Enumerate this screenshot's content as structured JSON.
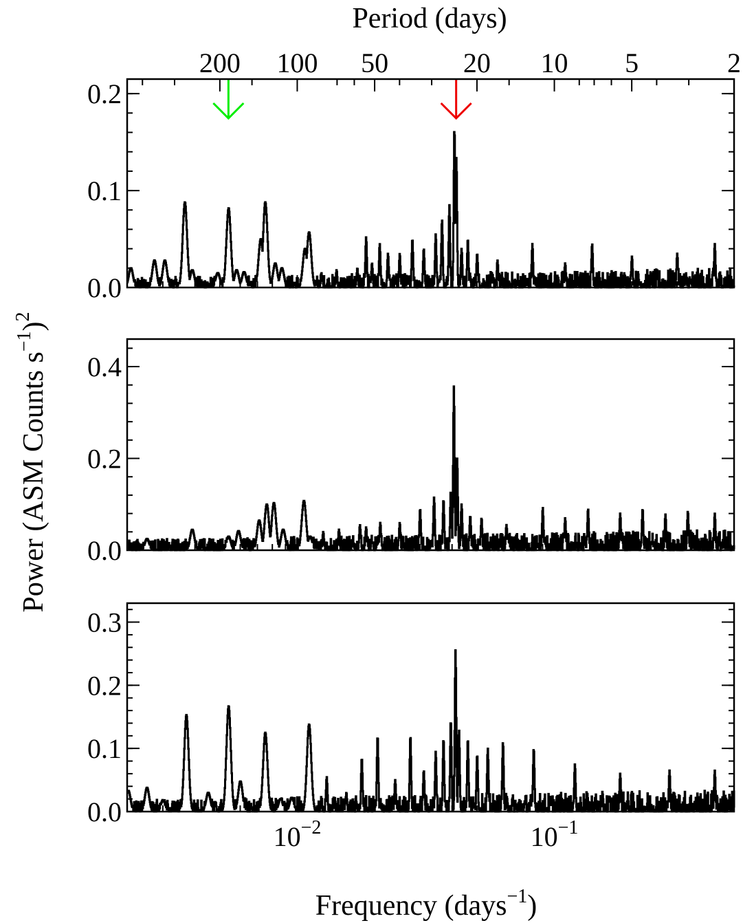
{
  "figure": {
    "top_axis_title": "Period (days)",
    "x_axis_title_main": "Frequency (days",
    "x_axis_title_sup": "−1",
    "x_axis_title_close": ")",
    "y_axis_title_main": "Power (ASM Counts s",
    "y_axis_title_sup1": "−1",
    "y_axis_title_close": ")",
    "y_axis_title_sup2": "2"
  },
  "chart_data": {
    "type": "line",
    "x_scale": "log",
    "xlim": [
      0.00218,
      0.5
    ],
    "xlabel": "Frequency (days−1)",
    "x_tick_labels": [
      {
        "value": 0.01,
        "base": "10",
        "exp": "−2"
      },
      {
        "value": 0.1,
        "base": "10",
        "exp": "−1"
      }
    ],
    "top_axis": {
      "label": "Period (days)",
      "ticks": [
        {
          "period": 200,
          "label": "200"
        },
        {
          "period": 100,
          "label": "100"
        },
        {
          "period": 50,
          "label": "50"
        },
        {
          "period": 20,
          "label": "20"
        },
        {
          "period": 10,
          "label": "10"
        },
        {
          "period": 5,
          "label": "5"
        },
        {
          "period": 2,
          "label": "2"
        }
      ]
    },
    "ylabel": "Power (ASM Counts s−1)2",
    "arrows": [
      {
        "frequency": 0.0054,
        "color": "#00ee00"
      },
      {
        "frequency": 0.0415,
        "color": "#ee0000"
      }
    ],
    "panels": [
      {
        "ylim": [
          0,
          0.215
        ],
        "y_ticks": [
          {
            "value": 0.0,
            "label": "0.0"
          },
          {
            "value": 0.1,
            "label": "0.1"
          },
          {
            "value": 0.2,
            "label": "0.2"
          }
        ],
        "peaks": [
          [
            0.00225,
            0.02
          ],
          [
            0.00278,
            0.028
          ],
          [
            0.00305,
            0.028
          ],
          [
            0.00365,
            0.088
          ],
          [
            0.0039,
            0.018
          ],
          [
            0.0049,
            0.015
          ],
          [
            0.0054,
            0.082
          ],
          [
            0.0058,
            0.018
          ],
          [
            0.0062,
            0.016
          ],
          [
            0.0072,
            0.05
          ],
          [
            0.0075,
            0.088
          ],
          [
            0.0082,
            0.025
          ],
          [
            0.0087,
            0.02
          ],
          [
            0.0107,
            0.04
          ],
          [
            0.0111,
            0.057
          ],
          [
            0.0124,
            0.015
          ],
          [
            0.0142,
            0.018
          ],
          [
            0.0171,
            0.02
          ],
          [
            0.0185,
            0.052
          ],
          [
            0.0195,
            0.025
          ],
          [
            0.0209,
            0.045
          ],
          [
            0.0225,
            0.035
          ],
          [
            0.025,
            0.035
          ],
          [
            0.028,
            0.05
          ],
          [
            0.031,
            0.04
          ],
          [
            0.0345,
            0.055
          ],
          [
            0.0365,
            0.07
          ],
          [
            0.039,
            0.085
          ],
          [
            0.0408,
            0.165
          ],
          [
            0.0415,
            0.134
          ],
          [
            0.0435,
            0.04
          ],
          [
            0.046,
            0.05
          ],
          [
            0.05,
            0.035
          ],
          [
            0.06,
            0.028
          ],
          [
            0.082,
            0.045
          ],
          [
            0.11,
            0.025
          ],
          [
            0.14,
            0.045
          ],
          [
            0.2,
            0.032
          ],
          [
            0.3,
            0.035
          ],
          [
            0.42,
            0.045
          ]
        ],
        "noise_level": 0.02
      },
      {
        "ylim": [
          0,
          0.46
        ],
        "y_ticks": [
          {
            "value": 0.0,
            "label": "0.0"
          },
          {
            "value": 0.2,
            "label": "0.2"
          },
          {
            "value": 0.4,
            "label": "0.4"
          }
        ],
        "peaks": [
          [
            0.0026,
            0.025
          ],
          [
            0.0039,
            0.045
          ],
          [
            0.0054,
            0.03
          ],
          [
            0.0059,
            0.042
          ],
          [
            0.0071,
            0.065
          ],
          [
            0.0076,
            0.1
          ],
          [
            0.0081,
            0.103
          ],
          [
            0.0088,
            0.045
          ],
          [
            0.0106,
            0.108
          ],
          [
            0.0112,
            0.03
          ],
          [
            0.0126,
            0.04
          ],
          [
            0.0145,
            0.045
          ],
          [
            0.0175,
            0.055
          ],
          [
            0.0185,
            0.05
          ],
          [
            0.021,
            0.06
          ],
          [
            0.025,
            0.06
          ],
          [
            0.03,
            0.09
          ],
          [
            0.034,
            0.115
          ],
          [
            0.037,
            0.11
          ],
          [
            0.0395,
            0.13
          ],
          [
            0.0406,
            0.357
          ],
          [
            0.0418,
            0.2
          ],
          [
            0.0435,
            0.1
          ],
          [
            0.047,
            0.075
          ],
          [
            0.052,
            0.07
          ],
          [
            0.065,
            0.055
          ],
          [
            0.09,
            0.093
          ],
          [
            0.11,
            0.07
          ],
          [
            0.135,
            0.09
          ],
          [
            0.18,
            0.08
          ],
          [
            0.22,
            0.09
          ],
          [
            0.27,
            0.078
          ],
          [
            0.33,
            0.085
          ],
          [
            0.42,
            0.08
          ]
        ],
        "noise_level": 0.045
      },
      {
        "ylim": [
          0,
          0.33
        ],
        "y_ticks": [
          {
            "value": 0.0,
            "label": "0.0"
          },
          {
            "value": 0.1,
            "label": "0.1"
          },
          {
            "value": 0.2,
            "label": "0.2"
          },
          {
            "value": 0.3,
            "label": "0.3"
          }
        ],
        "peaks": [
          [
            0.0022,
            0.033
          ],
          [
            0.0026,
            0.038
          ],
          [
            0.003,
            0.018
          ],
          [
            0.0037,
            0.153
          ],
          [
            0.0045,
            0.03
          ],
          [
            0.0054,
            0.167
          ],
          [
            0.006,
            0.048
          ],
          [
            0.0075,
            0.125
          ],
          [
            0.0086,
            0.02
          ],
          [
            0.0095,
            0.022
          ],
          [
            0.0111,
            0.138
          ],
          [
            0.013,
            0.055
          ],
          [
            0.0155,
            0.03
          ],
          [
            0.0178,
            0.085
          ],
          [
            0.0205,
            0.12
          ],
          [
            0.024,
            0.05
          ],
          [
            0.0275,
            0.12
          ],
          [
            0.031,
            0.065
          ],
          [
            0.0345,
            0.095
          ],
          [
            0.037,
            0.115
          ],
          [
            0.0395,
            0.145
          ],
          [
            0.0412,
            0.256
          ],
          [
            0.0425,
            0.13
          ],
          [
            0.046,
            0.115
          ],
          [
            0.05,
            0.09
          ],
          [
            0.055,
            0.1
          ],
          [
            0.063,
            0.11
          ],
          [
            0.083,
            0.1
          ],
          [
            0.12,
            0.075
          ],
          [
            0.18,
            0.06
          ],
          [
            0.28,
            0.065
          ],
          [
            0.42,
            0.065
          ]
        ],
        "noise_level": 0.035
      }
    ]
  }
}
